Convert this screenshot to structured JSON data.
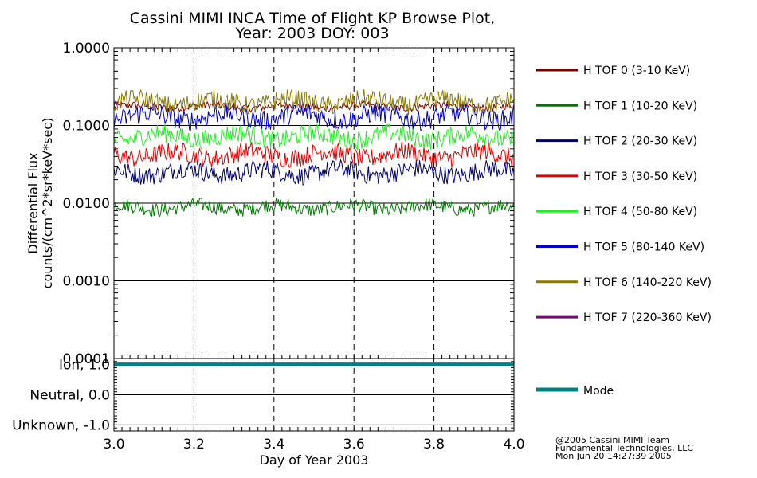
{
  "chart_data": {
    "type": "line",
    "title_line1": "Cassini MIMI INCA Time of Flight KP Browse Plot,",
    "title_line2": "Year: 2003 DOY: 003",
    "xlabel": "Day of Year 2003",
    "ylabel_line1": "Differential Flux",
    "ylabel_line2": "counts/(cm^2*sr*keV*sec)",
    "xlim": [
      3.0,
      4.0
    ],
    "x_ticks": [
      {
        "value": 3.0,
        "label": "3.0"
      },
      {
        "value": 3.2,
        "label": "3.2"
      },
      {
        "value": 3.4,
        "label": "3.4"
      },
      {
        "value": 3.6,
        "label": "3.6"
      },
      {
        "value": 3.8,
        "label": "3.8"
      },
      {
        "value": 4.0,
        "label": "4.0"
      }
    ],
    "flux_panel": {
      "scale": "log",
      "ylim": [
        0.0001,
        1.0
      ],
      "y_ticks": [
        {
          "value": 1.0,
          "label": "1.0000"
        },
        {
          "value": 0.1,
          "label": "0.1000"
        },
        {
          "value": 0.01,
          "label": "0.0100"
        },
        {
          "value": 0.001,
          "label": "0.0010"
        },
        {
          "value": 0.0001,
          "label": "0.0001"
        }
      ],
      "series": [
        {
          "name": "H TOF 0 (3-10 KeV)",
          "color": "#800000",
          "level": 0.175,
          "noise": 0.05,
          "x_start": 3.0,
          "x_end": 4.0
        },
        {
          "name": "H TOF 1 (10-20 KeV)",
          "color": "#007a00",
          "level": 0.0088,
          "noise": 0.09,
          "x_start": 3.0,
          "x_end": 4.0
        },
        {
          "name": "H TOF 2 (20-30 KeV)",
          "color": "#000070",
          "level": 0.025,
          "noise": 0.12,
          "x_start": 3.0,
          "x_end": 4.0
        },
        {
          "name": "H TOF 3 (30-50 KeV)",
          "color": "#e00000",
          "level": 0.042,
          "noise": 0.12,
          "x_start": 3.0,
          "x_end": 4.0
        },
        {
          "name": "H TOF 4 (50-80 KeV)",
          "color": "#22ee22",
          "level": 0.072,
          "noise": 0.12,
          "x_start": 3.0,
          "x_end": 4.0
        },
        {
          "name": "H TOF 5 (80-140 KeV)",
          "color": "#0000c8",
          "level": 0.13,
          "noise": 0.13,
          "x_start": 3.0,
          "x_end": 4.0
        },
        {
          "name": "H TOF 6 (140-220 KeV)",
          "color": "#8a7a00",
          "level": 0.2,
          "noise": 0.12,
          "x_start": 3.0,
          "x_end": 4.0
        },
        {
          "name": "H TOF 7 (220-360 KeV)",
          "color": "#800080",
          "level": 0.18,
          "noise": 0.05,
          "x_start": 3.0,
          "x_end": 3.01
        }
      ]
    },
    "mode_panel": {
      "ylim": [
        -1.2,
        1.2
      ],
      "y_ticks": [
        {
          "value": 1.0,
          "label": "Ion, 1.0"
        },
        {
          "value": 0.0,
          "label": "Neutral, 0.0"
        },
        {
          "value": -1.0,
          "label": "Unknown, -1.0"
        }
      ],
      "series": {
        "name": "Mode",
        "color": "#008080",
        "value": 1.0
      }
    },
    "credit": [
      "@2005 Cassini MIMI Team",
      "Fundamental Technologies, LLC",
      "Mon Jun 20 14:27:39 2005"
    ]
  }
}
